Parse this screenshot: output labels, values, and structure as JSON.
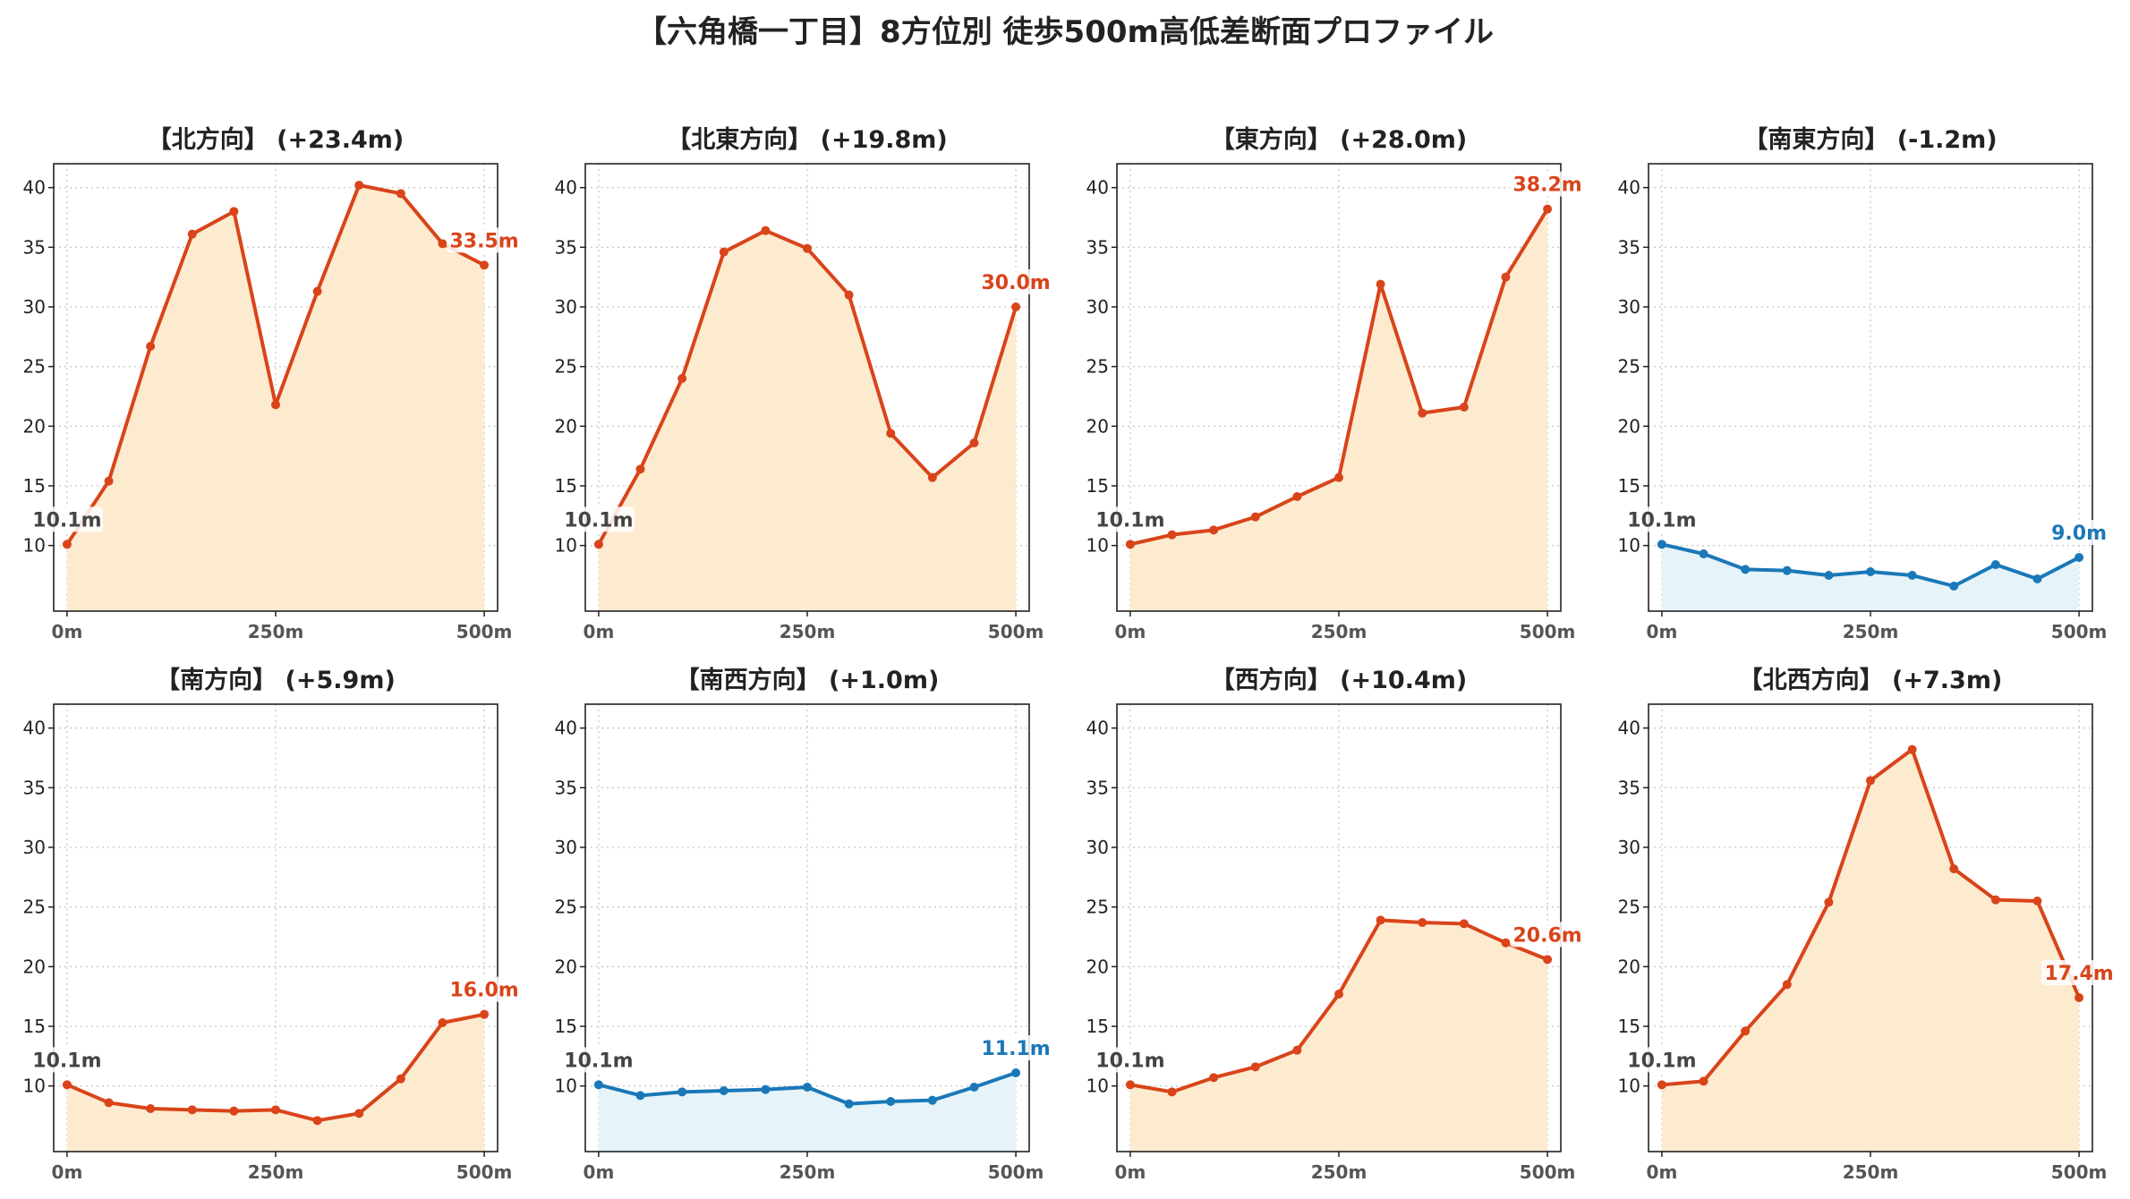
{
  "figure_title": "【六角橋一丁目】8方位別 徒歩500m高低差断面プロファイル",
  "colors": {
    "up_line": "#d9441a",
    "up_fill": "#fdebd0",
    "down_line": "#1a78b8",
    "down_fill": "#e6f4fa",
    "start_label": "#444444",
    "grid": "#c8c8c8",
    "axis": "#222222"
  },
  "chart_data": [
    {
      "type": "area",
      "title": "【北方向】 (+23.4m)",
      "trend": "up",
      "x": [
        0,
        50,
        100,
        150,
        200,
        250,
        300,
        350,
        400,
        450,
        500
      ],
      "y": [
        10.1,
        15.4,
        26.7,
        36.1,
        38.0,
        21.8,
        31.3,
        40.2,
        39.5,
        35.3,
        33.5
      ],
      "start_label": "10.1m",
      "end_label": "33.5m",
      "x_ticks": [
        0,
        250,
        500
      ],
      "x_tick_labels": [
        "0m",
        "250m",
        "500m"
      ],
      "y_ticks": [
        10,
        15,
        20,
        25,
        30,
        35,
        40
      ],
      "y_tick_labels": [
        "10",
        "15",
        "20",
        "25",
        "30",
        "35",
        "40"
      ],
      "xlim": [
        -16,
        516
      ],
      "ylim": [
        4.5,
        42
      ],
      "grid": true
    },
    {
      "type": "area",
      "title": "【北東方向】 (+19.8m)",
      "trend": "up",
      "x": [
        0,
        50,
        100,
        150,
        200,
        250,
        300,
        350,
        400,
        450,
        500
      ],
      "y": [
        10.1,
        16.4,
        24.0,
        34.6,
        36.4,
        34.9,
        31.0,
        19.4,
        15.7,
        18.6,
        30.0
      ],
      "start_label": "10.1m",
      "end_label": "30.0m",
      "x_ticks": [
        0,
        250,
        500
      ],
      "x_tick_labels": [
        "0m",
        "250m",
        "500m"
      ],
      "y_ticks": [
        10,
        15,
        20,
        25,
        30,
        35,
        40
      ],
      "y_tick_labels": [
        "10",
        "15",
        "20",
        "25",
        "30",
        "35",
        "40"
      ],
      "xlim": [
        -16,
        516
      ],
      "ylim": [
        4.5,
        42
      ],
      "grid": true
    },
    {
      "type": "area",
      "title": "【東方向】 (+28.0m)",
      "trend": "up",
      "x": [
        0,
        50,
        100,
        150,
        200,
        250,
        300,
        350,
        400,
        450,
        500
      ],
      "y": [
        10.1,
        10.9,
        11.3,
        12.4,
        14.1,
        15.7,
        31.9,
        21.1,
        21.6,
        32.5,
        38.2
      ],
      "start_label": "10.1m",
      "end_label": "38.2m",
      "x_ticks": [
        0,
        250,
        500
      ],
      "x_tick_labels": [
        "0m",
        "250m",
        "500m"
      ],
      "y_ticks": [
        10,
        15,
        20,
        25,
        30,
        35,
        40
      ],
      "y_tick_labels": [
        "10",
        "15",
        "20",
        "25",
        "30",
        "35",
        "40"
      ],
      "xlim": [
        -16,
        516
      ],
      "ylim": [
        4.5,
        42
      ],
      "grid": true
    },
    {
      "type": "area",
      "title": "【南東方向】 (-1.2m)",
      "trend": "down",
      "x": [
        0,
        50,
        100,
        150,
        200,
        250,
        300,
        350,
        400,
        450,
        500
      ],
      "y": [
        10.1,
        9.3,
        8.0,
        7.9,
        7.5,
        7.8,
        7.5,
        6.6,
        8.4,
        7.2,
        9.0
      ],
      "start_label": "10.1m",
      "end_label": "9.0m",
      "x_ticks": [
        0,
        250,
        500
      ],
      "x_tick_labels": [
        "0m",
        "250m",
        "500m"
      ],
      "y_ticks": [
        10,
        15,
        20,
        25,
        30,
        35,
        40
      ],
      "y_tick_labels": [
        "10",
        "15",
        "20",
        "25",
        "30",
        "35",
        "40"
      ],
      "xlim": [
        -16,
        516
      ],
      "ylim": [
        4.5,
        42
      ],
      "grid": true
    },
    {
      "type": "area",
      "title": "【南方向】 (+5.9m)",
      "trend": "up",
      "x": [
        0,
        50,
        100,
        150,
        200,
        250,
        300,
        350,
        400,
        450,
        500
      ],
      "y": [
        10.1,
        8.6,
        8.1,
        8.0,
        7.9,
        8.0,
        7.1,
        7.7,
        10.6,
        15.3,
        16.0
      ],
      "start_label": "10.1m",
      "end_label": "16.0m",
      "x_ticks": [
        0,
        250,
        500
      ],
      "x_tick_labels": [
        "0m",
        "250m",
        "500m"
      ],
      "y_ticks": [
        10,
        15,
        20,
        25,
        30,
        35,
        40
      ],
      "y_tick_labels": [
        "10",
        "15",
        "20",
        "25",
        "30",
        "35",
        "40"
      ],
      "xlim": [
        -16,
        516
      ],
      "ylim": [
        4.5,
        42
      ],
      "grid": true
    },
    {
      "type": "area",
      "title": "【南西方向】 (+1.0m)",
      "trend": "up-small",
      "x": [
        0,
        50,
        100,
        150,
        200,
        250,
        300,
        350,
        400,
        450,
        500
      ],
      "y": [
        10.1,
        9.2,
        9.5,
        9.6,
        9.7,
        9.9,
        8.5,
        8.7,
        8.8,
        9.9,
        11.1
      ],
      "start_label": "10.1m",
      "end_label": "11.1m",
      "x_ticks": [
        0,
        250,
        500
      ],
      "x_tick_labels": [
        "0m",
        "250m",
        "500m"
      ],
      "y_ticks": [
        10,
        15,
        20,
        25,
        30,
        35,
        40
      ],
      "y_tick_labels": [
        "10",
        "15",
        "20",
        "25",
        "30",
        "35",
        "40"
      ],
      "xlim": [
        -16,
        516
      ],
      "ylim": [
        4.5,
        42
      ],
      "grid": true
    },
    {
      "type": "area",
      "title": "【西方向】 (+10.4m)",
      "trend": "up",
      "x": [
        0,
        50,
        100,
        150,
        200,
        250,
        300,
        350,
        400,
        450,
        500
      ],
      "y": [
        10.1,
        9.5,
        10.7,
        11.6,
        13.0,
        17.7,
        23.9,
        23.7,
        23.6,
        22.0,
        20.6
      ],
      "start_label": "10.1m",
      "end_label": "20.6m",
      "x_ticks": [
        0,
        250,
        500
      ],
      "x_tick_labels": [
        "0m",
        "250m",
        "500m"
      ],
      "y_ticks": [
        10,
        15,
        20,
        25,
        30,
        35,
        40
      ],
      "y_tick_labels": [
        "10",
        "15",
        "20",
        "25",
        "30",
        "35",
        "40"
      ],
      "xlim": [
        -16,
        516
      ],
      "ylim": [
        4.5,
        42
      ],
      "grid": true
    },
    {
      "type": "area",
      "title": "【北西方向】 (+7.3m)",
      "trend": "up",
      "x": [
        0,
        50,
        100,
        150,
        200,
        250,
        300,
        350,
        400,
        450,
        500
      ],
      "y": [
        10.1,
        10.4,
        14.6,
        18.5,
        25.4,
        35.6,
        38.2,
        28.2,
        25.6,
        25.5,
        17.4
      ],
      "start_label": "10.1m",
      "end_label": "17.4m",
      "x_ticks": [
        0,
        250,
        500
      ],
      "x_tick_labels": [
        "0m",
        "250m",
        "500m"
      ],
      "y_ticks": [
        10,
        15,
        20,
        25,
        30,
        35,
        40
      ],
      "y_tick_labels": [
        "10",
        "15",
        "20",
        "25",
        "30",
        "35",
        "40"
      ],
      "xlim": [
        -16,
        516
      ],
      "ylim": [
        4.5,
        42
      ],
      "grid": true
    }
  ]
}
